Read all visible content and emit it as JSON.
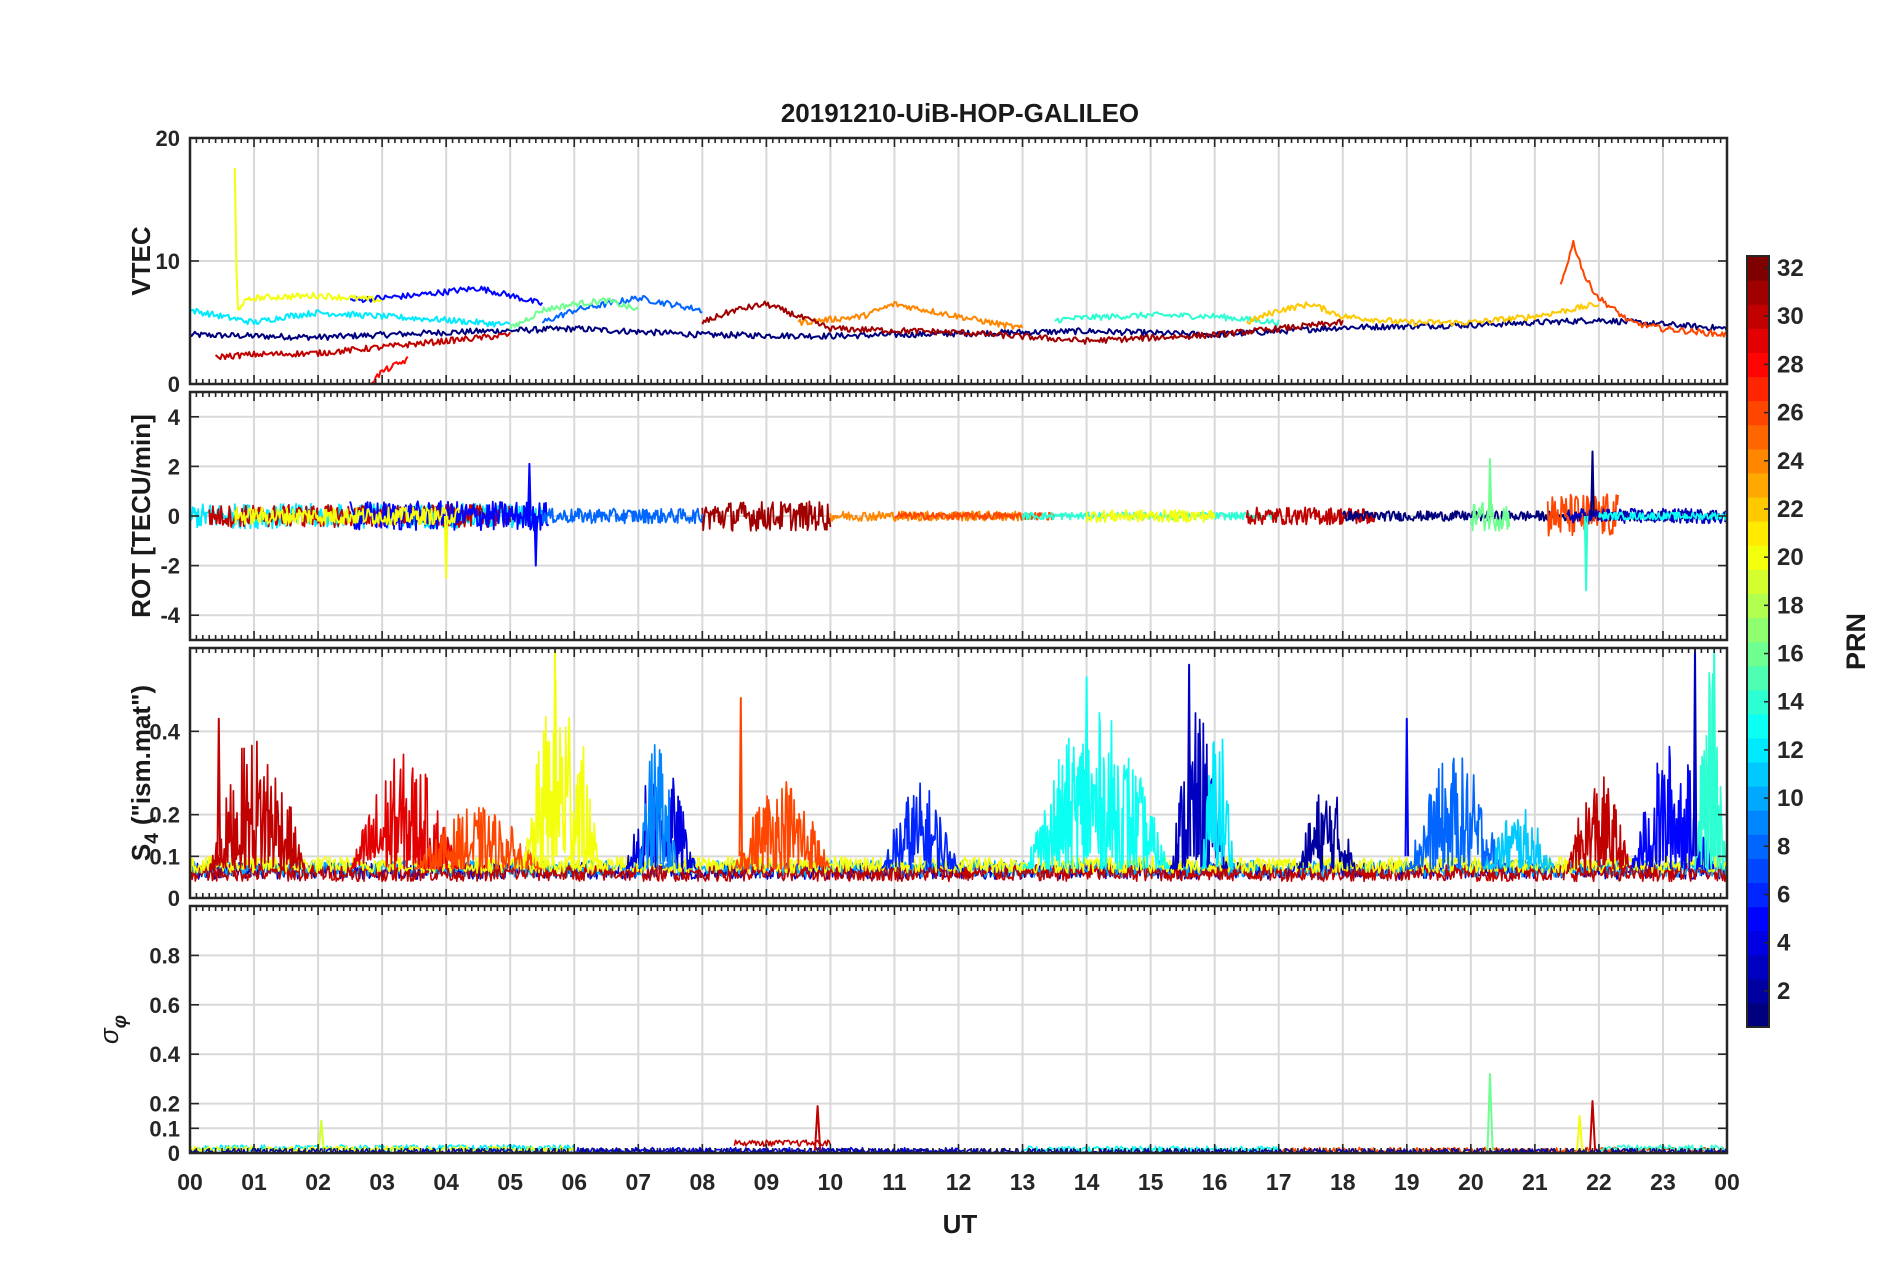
{
  "figure_title": "20191210-UiB-HOP-GALILEO",
  "colors": {
    "jet": [
      "#00007f",
      "#0000ff",
      "#007fff",
      "#00ffff",
      "#7fff7f",
      "#ffff00",
      "#ff7f00",
      "#ff0000",
      "#7f0000"
    ]
  },
  "chart_data": [
    {
      "type": "line",
      "panel": "vtec",
      "ylabel": "VTEC",
      "ylim": [
        0,
        20
      ],
      "yticks": [
        0,
        10,
        20
      ],
      "grid": true,
      "x_tick_labels": [
        "00",
        "01",
        "02",
        "03",
        "04",
        "05",
        "06",
        "07",
        "08",
        "09",
        "10",
        "11",
        "12",
        "13",
        "14",
        "15",
        "16",
        "17",
        "18",
        "19",
        "20",
        "21",
        "22",
        "23",
        "00"
      ],
      "xlim": [
        0,
        24
      ],
      "series": [
        {
          "prn": 1,
          "x": [
            0,
            2,
            4,
            6,
            8,
            10,
            12,
            14,
            16,
            18,
            20,
            22,
            24
          ],
          "values": [
            4.0,
            3.8,
            4.2,
            4.5,
            4.0,
            3.9,
            4.1,
            4.3,
            4.0,
            4.6,
            4.8,
            5.2,
            4.5
          ]
        },
        {
          "prn": 5,
          "x": [
            2.5,
            3.0,
            3.5,
            4.0,
            4.5,
            5.0,
            5.5
          ],
          "values": [
            6.8,
            7.0,
            7.2,
            7.5,
            7.8,
            7.2,
            6.5
          ]
        },
        {
          "prn": 8,
          "x": [
            5.5,
            6.0,
            6.5,
            7.0,
            7.5,
            8.0
          ],
          "values": [
            5.0,
            6.0,
            6.5,
            7.0,
            6.5,
            6.0
          ]
        },
        {
          "prn": 12,
          "x": [
            0,
            0.5,
            1.0,
            1.5,
            2.0,
            3.0,
            4.0,
            5.0
          ],
          "values": [
            6.0,
            5.5,
            5.0,
            5.5,
            5.8,
            5.5,
            5.2,
            4.8
          ]
        },
        {
          "prn": 14,
          "x": [
            13.5,
            14.0,
            15.0,
            16.0,
            17.0
          ],
          "values": [
            5.2,
            5.4,
            5.6,
            5.5,
            5.0
          ]
        },
        {
          "prn": 16,
          "x": [
            5.0,
            5.5,
            6.0,
            6.5,
            7.0
          ],
          "values": [
            4.5,
            6.0,
            6.5,
            6.8,
            6.0
          ]
        },
        {
          "prn": 20,
          "x": [
            0.7,
            0.72,
            0.75,
            0.8,
            1.0,
            2.0,
            3.0
          ],
          "values": [
            17.5,
            10.0,
            6.0,
            6.5,
            7.0,
            7.2,
            6.8
          ]
        },
        {
          "prn": 22,
          "x": [
            16.5,
            17.0,
            17.5,
            18.0,
            19.0,
            20.0,
            21.0,
            22.0
          ],
          "values": [
            5.0,
            6.0,
            6.5,
            5.5,
            5.0,
            5.0,
            5.5,
            6.5
          ]
        },
        {
          "prn": 24,
          "x": [
            9.5,
            10.5,
            11.0,
            11.5,
            12.0,
            13.0
          ],
          "values": [
            5.0,
            5.5,
            6.5,
            6.0,
            5.5,
            4.5
          ]
        },
        {
          "prn": 26,
          "x": [
            21.4,
            21.6,
            21.8,
            22.0,
            22.5,
            23.0,
            24.0
          ],
          "values": [
            8.0,
            11.5,
            8.5,
            7.0,
            5.0,
            4.5,
            4.0
          ]
        },
        {
          "prn": 28,
          "x": [
            2.8,
            3.0,
            3.2,
            3.4
          ],
          "values": [
            0.0,
            1.0,
            1.5,
            2.0
          ]
        },
        {
          "prn": 30,
          "x": [
            0.4,
            1.0,
            2.0,
            3.0,
            4.0,
            5.0
          ],
          "values": [
            2.2,
            2.4,
            2.5,
            3.0,
            3.5,
            4.0
          ]
        },
        {
          "prn": 31,
          "x": [
            8.0,
            8.5,
            9.0,
            9.5,
            10.0,
            12.0,
            14.0,
            16.0,
            18.0
          ],
          "values": [
            5.0,
            6.0,
            6.5,
            5.5,
            4.5,
            4.2,
            3.5,
            4.0,
            5.0
          ]
        }
      ]
    },
    {
      "type": "line",
      "panel": "rot",
      "ylabel": "ROT [TECU/min]",
      "ylim": [
        -5,
        5
      ],
      "yticks": [
        -4,
        -2,
        0,
        2,
        4
      ],
      "grid": true,
      "xlim": [
        0,
        24
      ],
      "series_note_values": [
        {
          "prn": 5,
          "x": 5.4,
          "value": -2.0
        },
        {
          "prn": 20,
          "x": 4.0,
          "value": -2.5
        },
        {
          "prn": 5,
          "x": 5.3,
          "value": 2.1
        },
        {
          "prn": 16,
          "x": 20.3,
          "value": 2.3
        },
        {
          "prn": 14,
          "x": 21.8,
          "value": -3.0
        },
        {
          "prn": 1,
          "x": 21.9,
          "value": 2.6
        }
      ]
    },
    {
      "type": "line",
      "panel": "s4",
      "ylabel": "S4 (\"ism.mat\")",
      "ylabel_main": "S",
      "ylabel_sub": "4",
      "ylabel_rest": "(\"ism.mat\")",
      "ylim": [
        0,
        0.6
      ],
      "yticks": [
        0,
        0.1,
        0.2,
        0.4
      ],
      "grid": true,
      "xlim": [
        0,
        24
      ],
      "peaks": [
        {
          "prn": 30,
          "x": 0.45,
          "value": 0.43
        },
        {
          "prn": 20,
          "x": 5.7,
          "value": 0.6
        },
        {
          "prn": 26,
          "x": 8.6,
          "value": 0.48
        },
        {
          "prn": 13,
          "x": 14.0,
          "value": 0.53
        },
        {
          "prn": 3,
          "x": 15.6,
          "value": 0.56
        },
        {
          "prn": 5,
          "x": 19.0,
          "value": 0.43
        },
        {
          "prn": 3,
          "x": 23.5,
          "value": 0.6
        },
        {
          "prn": 14,
          "x": 23.8,
          "value": 0.6
        }
      ]
    },
    {
      "type": "line",
      "panel": "sigma_phi",
      "ylabel": "σφ",
      "ylabel_main": "σ",
      "ylabel_sub": "φ",
      "ylim": [
        0,
        1
      ],
      "yticks": [
        0,
        0.1,
        0.2,
        0.4,
        0.6,
        0.8
      ],
      "grid": true,
      "xlim": [
        0,
        24
      ],
      "xlabel": "UT",
      "peaks": [
        {
          "prn": 16,
          "x": 20.3,
          "value": 0.32
        },
        {
          "prn": 30,
          "x": 9.8,
          "value": 0.19
        },
        {
          "prn": 30,
          "x": 21.9,
          "value": 0.21
        },
        {
          "prn": 20,
          "x": 21.7,
          "value": 0.15
        },
        {
          "prn": 19,
          "x": 2.05,
          "value": 0.13
        }
      ]
    }
  ],
  "colorbar": {
    "label": "PRN",
    "range": [
      1,
      32
    ],
    "ticks": [
      2,
      4,
      6,
      8,
      10,
      12,
      14,
      16,
      18,
      20,
      22,
      24,
      26,
      28,
      30,
      32
    ]
  }
}
